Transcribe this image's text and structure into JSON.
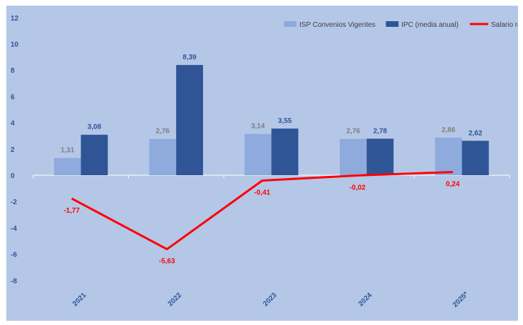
{
  "chart_data": {
    "type": "bar",
    "categories": [
      "2021",
      "2022",
      "2023",
      "2024",
      "2025*"
    ],
    "series": [
      {
        "name": "ISP Convenios Vigentes",
        "kind": "bar",
        "color": "#8faadc",
        "values": [
          1.31,
          2.76,
          3.14,
          2.76,
          2.86
        ],
        "labels": [
          "1,31",
          "2,76",
          "3,14",
          "2,76",
          "2,86"
        ],
        "label_color": "#7f7f7f"
      },
      {
        "name": "IPC (media anual)",
        "kind": "bar",
        "color": "#2f5597",
        "values": [
          3.08,
          8.39,
          3.55,
          2.78,
          2.62
        ],
        "labels": [
          "3,08",
          "8,39",
          "3,55",
          "2,78",
          "2,62"
        ],
        "label_color": "#2f5597"
      },
      {
        "name": "Salario real",
        "kind": "line",
        "color": "#ff0000",
        "values": [
          -1.77,
          -5.63,
          -0.41,
          -0.02,
          0.24
        ],
        "labels": [
          "-1,77",
          "-5,63",
          "-0,41",
          "-0,02",
          "0,24"
        ],
        "label_color": "#ff0000"
      }
    ],
    "yticks": [
      "12",
      "10",
      "8",
      "6",
      "4",
      "2",
      "0",
      "-2",
      "-4",
      "-6",
      "-8"
    ],
    "ylim": [
      -8,
      12
    ],
    "legend_position": "top-right",
    "grid": false
  }
}
